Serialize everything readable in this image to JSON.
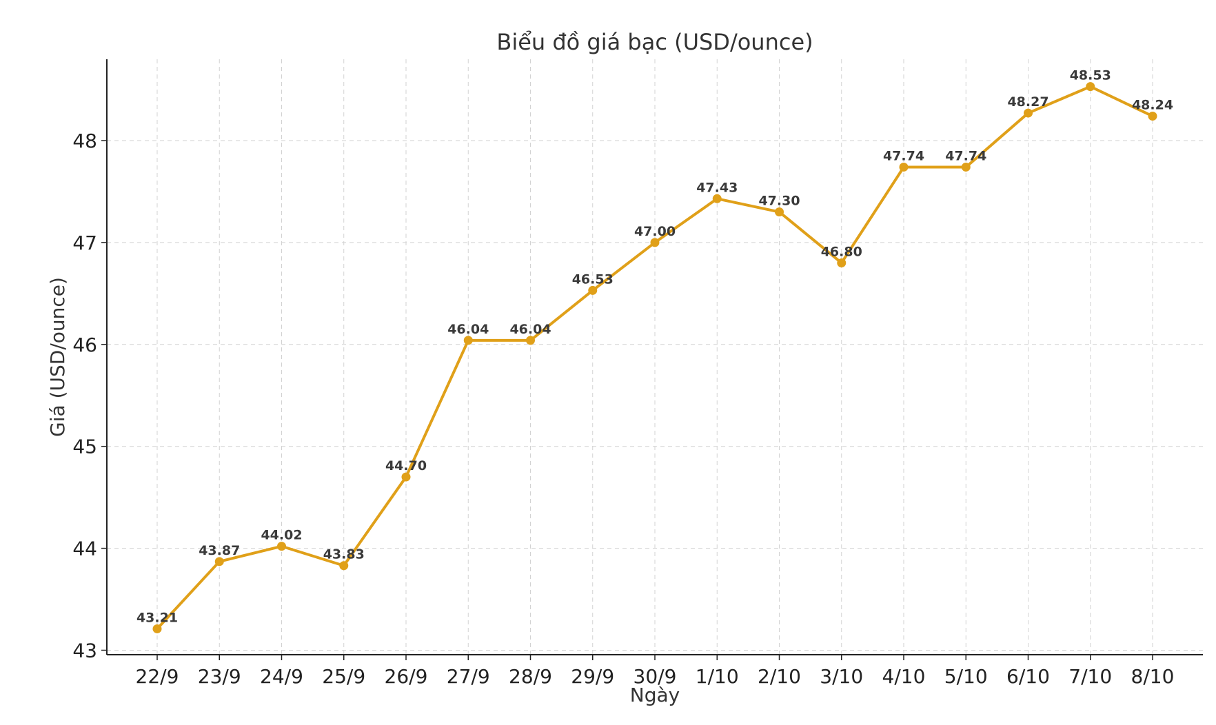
{
  "chart_data": {
    "type": "line",
    "title": "Biểu đồ giá bạc (USD/ounce)",
    "xlabel": "Ngày",
    "ylabel": "Giá (USD/ounce)",
    "categories": [
      "22/9",
      "23/9",
      "24/9",
      "25/9",
      "26/9",
      "27/9",
      "28/9",
      "29/9",
      "30/9",
      "1/10",
      "2/10",
      "3/10",
      "4/10",
      "5/10",
      "6/10",
      "7/10",
      "8/10"
    ],
    "series": [
      {
        "values": [
          43.21,
          43.87,
          44.02,
          43.83,
          44.7,
          46.04,
          46.04,
          46.53,
          47.0,
          47.43,
          47.3,
          46.8,
          47.74,
          47.74,
          48.27,
          48.53,
          48.24
        ],
        "labels": [
          "43.21",
          "43.87",
          "44.02",
          "43.83",
          "44.70",
          "46.04",
          "46.04",
          "46.53",
          "47.00",
          "47.43",
          "47.30",
          "46.80",
          "47.74",
          "47.74",
          "48.27",
          "48.53",
          "48.24"
        ],
        "color": "#e0a019"
      }
    ],
    "yticks": [
      43,
      44,
      45,
      46,
      47,
      48
    ],
    "ytick_labels": [
      "43",
      "44",
      "45",
      "46",
      "47",
      "48"
    ],
    "ylim": [
      42.97,
      48.8
    ],
    "grid": true,
    "legend": "none"
  }
}
